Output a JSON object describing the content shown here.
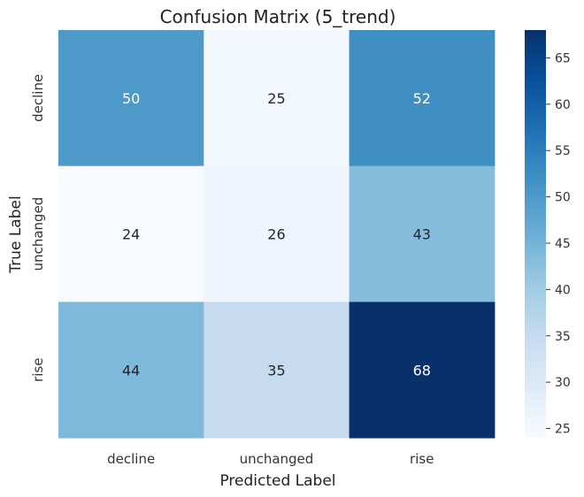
{
  "chart_data": {
    "type": "heatmap",
    "title": "Confusion Matrix (5_trend)",
    "xlabel": "Predicted Label",
    "ylabel": "True Label",
    "x_categories": [
      "decline",
      "unchanged",
      "rise"
    ],
    "y_categories": [
      "decline",
      "unchanged",
      "rise"
    ],
    "values": [
      [
        50,
        25,
        52
      ],
      [
        24,
        26,
        43
      ],
      [
        44,
        35,
        68
      ]
    ],
    "colormap": "Blues",
    "colorbar": {
      "range": [
        24,
        68
      ],
      "ticks": [
        25,
        30,
        35,
        40,
        45,
        50,
        55,
        60,
        65
      ]
    },
    "colors": {
      "low": "#f7fbff",
      "high": "#08306b",
      "dark_text": "#262626",
      "light_text": "#ffffff"
    }
  }
}
